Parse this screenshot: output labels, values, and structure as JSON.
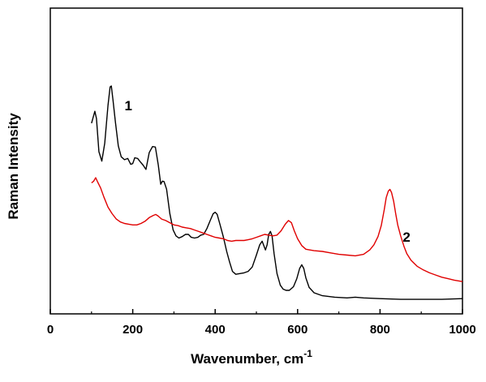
{
  "chart_data": {
    "type": "line",
    "xlabel": "Wavenumber, cm",
    "xlabel_superscript": "-1",
    "ylabel": "Raman Intensity",
    "xlim": [
      0,
      1000
    ],
    "ylim": [
      0,
      100
    ],
    "x_ticks": [
      "0",
      "200",
      "400",
      "600",
      "800",
      "1000"
    ],
    "y_tick_labels_shown": false,
    "grid": false,
    "series": [
      {
        "name": "1",
        "color": "#000000",
        "label_at": [
          180,
          78
        ],
        "points": [
          [
            100,
            72.7
          ],
          [
            108,
            77.6
          ],
          [
            112,
            74.6
          ],
          [
            118,
            61
          ],
          [
            125,
            57.1
          ],
          [
            132,
            64.5
          ],
          [
            140,
            80
          ],
          [
            145,
            87.6
          ],
          [
            148,
            88
          ],
          [
            152,
            82.4
          ],
          [
            158,
            73
          ],
          [
            165,
            63.4
          ],
          [
            172,
            58.9
          ],
          [
            180,
            57.7
          ],
          [
            188,
            58.2
          ],
          [
            195,
            55.8
          ],
          [
            200,
            56.1
          ],
          [
            205,
            58.5
          ],
          [
            212,
            58.2
          ],
          [
            218,
            56.9
          ],
          [
            225,
            55.5
          ],
          [
            232,
            53.7
          ],
          [
            240,
            60.6
          ],
          [
            248,
            63.1
          ],
          [
            255,
            62.9
          ],
          [
            262,
            55.5
          ],
          [
            268,
            47.6
          ],
          [
            272,
            48.9
          ],
          [
            276,
            48.7
          ],
          [
            282,
            45.6
          ],
          [
            290,
            35.6
          ],
          [
            298,
            28.8
          ],
          [
            305,
            26.4
          ],
          [
            312,
            25.5
          ],
          [
            320,
            26.1
          ],
          [
            328,
            27
          ],
          [
            335,
            27
          ],
          [
            342,
            25.8
          ],
          [
            350,
            25.5
          ],
          [
            358,
            25.8
          ],
          [
            365,
            26.7
          ],
          [
            372,
            27
          ],
          [
            380,
            29.4
          ],
          [
            388,
            32.7
          ],
          [
            395,
            35.5
          ],
          [
            400,
            36.1
          ],
          [
            405,
            35.2
          ],
          [
            412,
            30.9
          ],
          [
            420,
            25.8
          ],
          [
            428,
            20
          ],
          [
            435,
            15.6
          ],
          [
            442,
            11.8
          ],
          [
            450,
            10.6
          ],
          [
            460,
            10.9
          ],
          [
            470,
            11.2
          ],
          [
            480,
            11.8
          ],
          [
            490,
            13.6
          ],
          [
            500,
            18.5
          ],
          [
            508,
            22.7
          ],
          [
            514,
            24.2
          ],
          [
            518,
            22.4
          ],
          [
            522,
            20.6
          ],
          [
            526,
            22.7
          ],
          [
            530,
            27
          ],
          [
            534,
            28.2
          ],
          [
            538,
            26.4
          ],
          [
            543,
            19.1
          ],
          [
            550,
            10.9
          ],
          [
            558,
            6.1
          ],
          [
            565,
            4.5
          ],
          [
            572,
            4
          ],
          [
            580,
            4
          ],
          [
            590,
            5.5
          ],
          [
            598,
            8.8
          ],
          [
            605,
            13
          ],
          [
            610,
            14.5
          ],
          [
            615,
            13
          ],
          [
            620,
            9.1
          ],
          [
            628,
            5.2
          ],
          [
            640,
            3
          ],
          [
            660,
            1.8
          ],
          [
            690,
            1.2
          ],
          [
            720,
            0.9
          ],
          [
            740,
            1.2
          ],
          [
            760,
            0.9
          ],
          [
            800,
            0.6
          ],
          [
            850,
            0.3
          ],
          [
            900,
            0.3
          ],
          [
            950,
            0.3
          ],
          [
            1000,
            0.6
          ]
        ]
      },
      {
        "name": "2",
        "color": "#e00000",
        "label_at": [
          855,
          24
        ],
        "points": [
          [
            100,
            48.2
          ],
          [
            105,
            48.8
          ],
          [
            110,
            50.3
          ],
          [
            115,
            48.5
          ],
          [
            122,
            46.1
          ],
          [
            130,
            42.4
          ],
          [
            140,
            38.2
          ],
          [
            150,
            35.5
          ],
          [
            160,
            33.3
          ],
          [
            170,
            32.1
          ],
          [
            180,
            31.5
          ],
          [
            190,
            31.2
          ],
          [
            200,
            30.9
          ],
          [
            210,
            30.9
          ],
          [
            220,
            31.5
          ],
          [
            230,
            32.4
          ],
          [
            240,
            33.9
          ],
          [
            250,
            34.8
          ],
          [
            256,
            35.2
          ],
          [
            262,
            34.5
          ],
          [
            270,
            33.3
          ],
          [
            280,
            32.7
          ],
          [
            290,
            31.8
          ],
          [
            300,
            30.9
          ],
          [
            310,
            30.6
          ],
          [
            320,
            30
          ],
          [
            330,
            29.7
          ],
          [
            340,
            29.4
          ],
          [
            350,
            28.8
          ],
          [
            360,
            28.2
          ],
          [
            370,
            27.6
          ],
          [
            380,
            27
          ],
          [
            390,
            26.4
          ],
          [
            400,
            25.8
          ],
          [
            410,
            25.5
          ],
          [
            420,
            25.2
          ],
          [
            430,
            24.5
          ],
          [
            440,
            24.2
          ],
          [
            450,
            24.5
          ],
          [
            460,
            24.5
          ],
          [
            470,
            24.5
          ],
          [
            480,
            24.8
          ],
          [
            490,
            25.2
          ],
          [
            500,
            25.8
          ],
          [
            510,
            26.4
          ],
          [
            520,
            27
          ],
          [
            530,
            26.7
          ],
          [
            540,
            26.4
          ],
          [
            550,
            26.7
          ],
          [
            560,
            28.5
          ],
          [
            570,
            31.2
          ],
          [
            578,
            32.7
          ],
          [
            585,
            31.8
          ],
          [
            592,
            28.5
          ],
          [
            600,
            25.2
          ],
          [
            610,
            22.4
          ],
          [
            620,
            20.9
          ],
          [
            630,
            20.6
          ],
          [
            640,
            20.3
          ],
          [
            660,
            20
          ],
          [
            680,
            19.4
          ],
          [
            700,
            18.8
          ],
          [
            720,
            18.5
          ],
          [
            740,
            18.2
          ],
          [
            760,
            18.8
          ],
          [
            775,
            20.6
          ],
          [
            785,
            22.7
          ],
          [
            795,
            26.1
          ],
          [
            803,
            30.6
          ],
          [
            810,
            37
          ],
          [
            815,
            42.1
          ],
          [
            820,
            44.8
          ],
          [
            824,
            45.5
          ],
          [
            828,
            44.2
          ],
          [
            833,
            40.6
          ],
          [
            838,
            35.5
          ],
          [
            843,
            30.9
          ],
          [
            850,
            26.4
          ],
          [
            858,
            22.1
          ],
          [
            865,
            19.1
          ],
          [
            875,
            16.4
          ],
          [
            890,
            13.9
          ],
          [
            905,
            12.4
          ],
          [
            920,
            11.2
          ],
          [
            935,
            10.3
          ],
          [
            950,
            9.4
          ],
          [
            965,
            8.8
          ],
          [
            980,
            8.2
          ],
          [
            990,
            7.9
          ],
          [
            1000,
            7.6
          ]
        ]
      }
    ]
  }
}
